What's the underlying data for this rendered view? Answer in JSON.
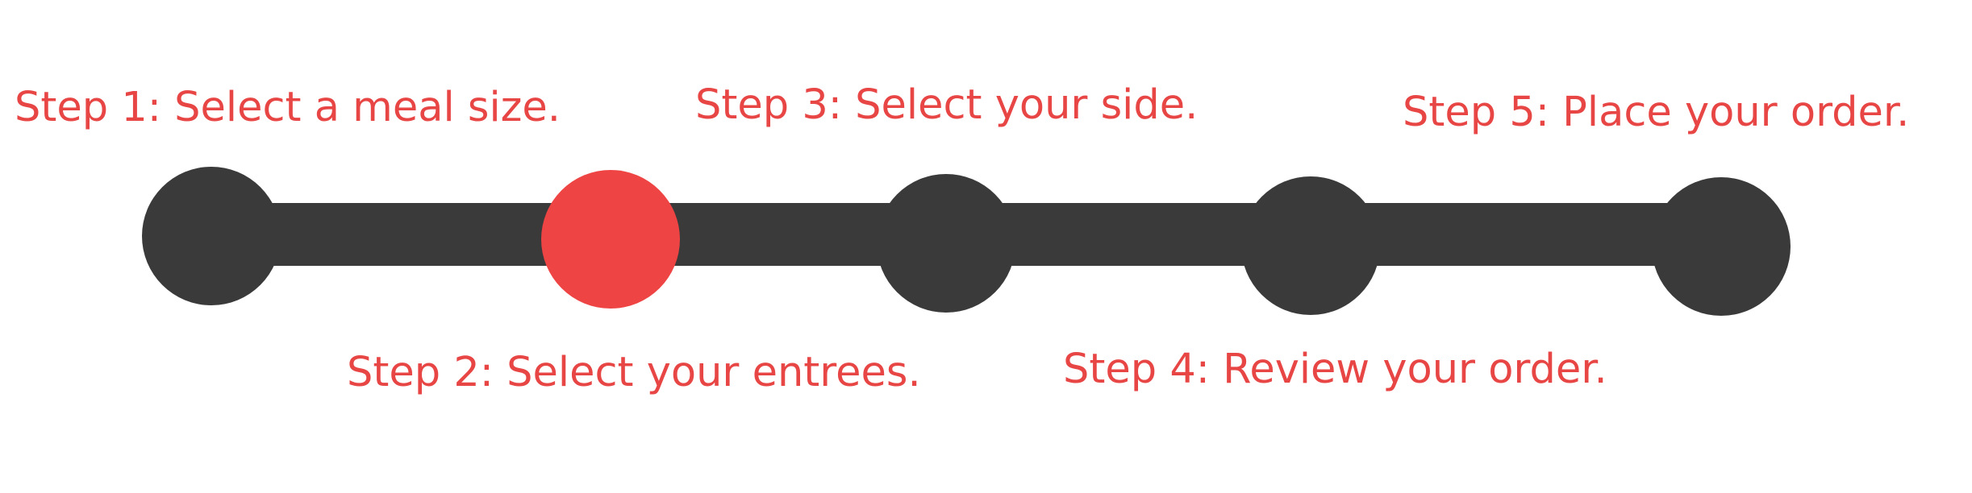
{
  "colors": {
    "track": "#3a3a3a",
    "active": "#ef4444",
    "label": "#e84545"
  },
  "current_step": 2,
  "steps": [
    {
      "label": "Step 1: Select a meal size."
    },
    {
      "label": "Step 2: Select your entrees."
    },
    {
      "label": "Step 3: Select your side."
    },
    {
      "label": "Step 4: Review your order."
    },
    {
      "label": "Step 5: Place your order."
    }
  ]
}
